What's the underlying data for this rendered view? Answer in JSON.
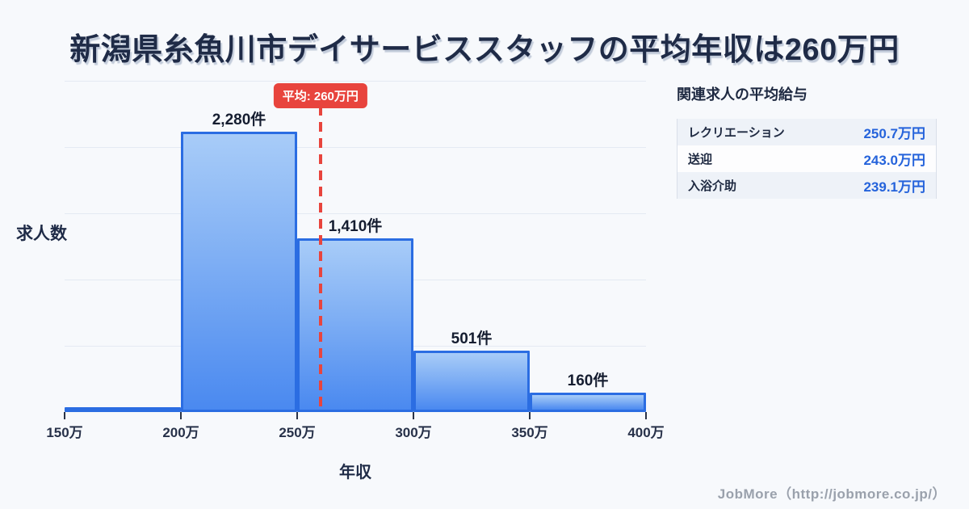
{
  "page": {
    "background": "#f7f9fc"
  },
  "title": "新潟県糸魚川市デイサービススタッフの平均年収は260万円",
  "chart_data": {
    "type": "bar",
    "title": "新潟県糸魚川市デイサービススタッフの平均年収は260万円",
    "xlabel": "年収",
    "ylabel": "求人数",
    "x_ticks": [
      "150万",
      "200万",
      "250万",
      "300万",
      "350万",
      "400万"
    ],
    "x_range": [
      150,
      400
    ],
    "bins": [
      "150万-200万",
      "200万-250万",
      "250万-300万",
      "300万-350万",
      "350万-400万"
    ],
    "values": [
      40,
      2280,
      1410,
      501,
      160
    ],
    "bar_labels": [
      "",
      "2,280件",
      "1,410件",
      "501件",
      "160件"
    ],
    "grid": true,
    "gridline_count": 5,
    "average_line": {
      "value": 260,
      "label": "平均: 260万円",
      "color": "#e8443d"
    },
    "bar_colors": {
      "fill_top": "#a8ccf8",
      "fill_bottom": "#4a89f0",
      "border": "#2b6de2"
    }
  },
  "side_panel": {
    "heading": "関連求人の平均給与",
    "value_color": "#2563db",
    "rows": [
      {
        "label": "レクリエーション",
        "value": "250.7万円"
      },
      {
        "label": "送迎",
        "value": "243.0万円"
      },
      {
        "label": "入浴介助",
        "value": "239.1万円"
      }
    ]
  },
  "footer": {
    "credit": "JobMore（http://jobmore.co.jp/）"
  }
}
